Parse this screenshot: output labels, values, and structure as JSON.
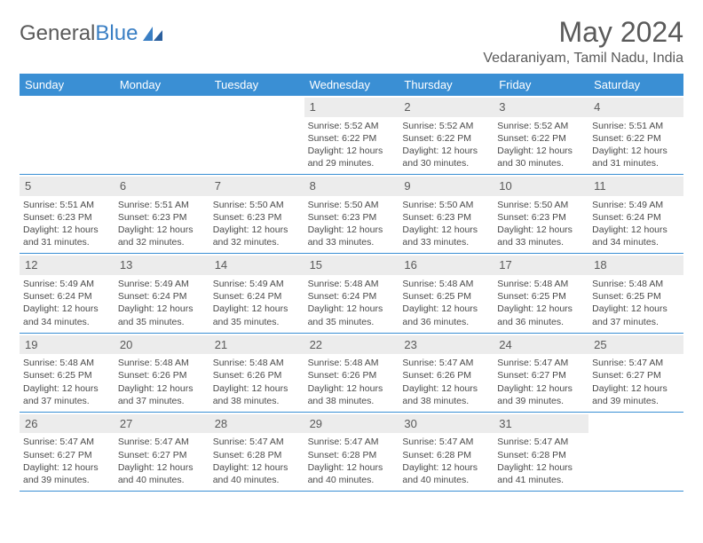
{
  "brand": {
    "part1": "General",
    "part2": "Blue"
  },
  "title": "May 2024",
  "location": "Vedaraniyam, Tamil Nadu, India",
  "colors": {
    "header_bg": "#3a8fd4",
    "header_text": "#ffffff",
    "daynum_bg": "#ececec",
    "border": "#3a8fd4",
    "body_text": "#4a4a4a",
    "title_text": "#5a5a5a",
    "brand_gray": "#5a5a5a",
    "brand_blue": "#3a7fc4"
  },
  "day_names": [
    "Sunday",
    "Monday",
    "Tuesday",
    "Wednesday",
    "Thursday",
    "Friday",
    "Saturday"
  ],
  "weeks": [
    [
      {
        "empty": true
      },
      {
        "empty": true
      },
      {
        "empty": true
      },
      {
        "day": "1",
        "sunrise": "5:52 AM",
        "sunset": "6:22 PM",
        "daylight": "12 hours and 29 minutes."
      },
      {
        "day": "2",
        "sunrise": "5:52 AM",
        "sunset": "6:22 PM",
        "daylight": "12 hours and 30 minutes."
      },
      {
        "day": "3",
        "sunrise": "5:52 AM",
        "sunset": "6:22 PM",
        "daylight": "12 hours and 30 minutes."
      },
      {
        "day": "4",
        "sunrise": "5:51 AM",
        "sunset": "6:22 PM",
        "daylight": "12 hours and 31 minutes."
      }
    ],
    [
      {
        "day": "5",
        "sunrise": "5:51 AM",
        "sunset": "6:23 PM",
        "daylight": "12 hours and 31 minutes."
      },
      {
        "day": "6",
        "sunrise": "5:51 AM",
        "sunset": "6:23 PM",
        "daylight": "12 hours and 32 minutes."
      },
      {
        "day": "7",
        "sunrise": "5:50 AM",
        "sunset": "6:23 PM",
        "daylight": "12 hours and 32 minutes."
      },
      {
        "day": "8",
        "sunrise": "5:50 AM",
        "sunset": "6:23 PM",
        "daylight": "12 hours and 33 minutes."
      },
      {
        "day": "9",
        "sunrise": "5:50 AM",
        "sunset": "6:23 PM",
        "daylight": "12 hours and 33 minutes."
      },
      {
        "day": "10",
        "sunrise": "5:50 AM",
        "sunset": "6:23 PM",
        "daylight": "12 hours and 33 minutes."
      },
      {
        "day": "11",
        "sunrise": "5:49 AM",
        "sunset": "6:24 PM",
        "daylight": "12 hours and 34 minutes."
      }
    ],
    [
      {
        "day": "12",
        "sunrise": "5:49 AM",
        "sunset": "6:24 PM",
        "daylight": "12 hours and 34 minutes."
      },
      {
        "day": "13",
        "sunrise": "5:49 AM",
        "sunset": "6:24 PM",
        "daylight": "12 hours and 35 minutes."
      },
      {
        "day": "14",
        "sunrise": "5:49 AM",
        "sunset": "6:24 PM",
        "daylight": "12 hours and 35 minutes."
      },
      {
        "day": "15",
        "sunrise": "5:48 AM",
        "sunset": "6:24 PM",
        "daylight": "12 hours and 35 minutes."
      },
      {
        "day": "16",
        "sunrise": "5:48 AM",
        "sunset": "6:25 PM",
        "daylight": "12 hours and 36 minutes."
      },
      {
        "day": "17",
        "sunrise": "5:48 AM",
        "sunset": "6:25 PM",
        "daylight": "12 hours and 36 minutes."
      },
      {
        "day": "18",
        "sunrise": "5:48 AM",
        "sunset": "6:25 PM",
        "daylight": "12 hours and 37 minutes."
      }
    ],
    [
      {
        "day": "19",
        "sunrise": "5:48 AM",
        "sunset": "6:25 PM",
        "daylight": "12 hours and 37 minutes."
      },
      {
        "day": "20",
        "sunrise": "5:48 AM",
        "sunset": "6:26 PM",
        "daylight": "12 hours and 37 minutes."
      },
      {
        "day": "21",
        "sunrise": "5:48 AM",
        "sunset": "6:26 PM",
        "daylight": "12 hours and 38 minutes."
      },
      {
        "day": "22",
        "sunrise": "5:48 AM",
        "sunset": "6:26 PM",
        "daylight": "12 hours and 38 minutes."
      },
      {
        "day": "23",
        "sunrise": "5:47 AM",
        "sunset": "6:26 PM",
        "daylight": "12 hours and 38 minutes."
      },
      {
        "day": "24",
        "sunrise": "5:47 AM",
        "sunset": "6:27 PM",
        "daylight": "12 hours and 39 minutes."
      },
      {
        "day": "25",
        "sunrise": "5:47 AM",
        "sunset": "6:27 PM",
        "daylight": "12 hours and 39 minutes."
      }
    ],
    [
      {
        "day": "26",
        "sunrise": "5:47 AM",
        "sunset": "6:27 PM",
        "daylight": "12 hours and 39 minutes."
      },
      {
        "day": "27",
        "sunrise": "5:47 AM",
        "sunset": "6:27 PM",
        "daylight": "12 hours and 40 minutes."
      },
      {
        "day": "28",
        "sunrise": "5:47 AM",
        "sunset": "6:28 PM",
        "daylight": "12 hours and 40 minutes."
      },
      {
        "day": "29",
        "sunrise": "5:47 AM",
        "sunset": "6:28 PM",
        "daylight": "12 hours and 40 minutes."
      },
      {
        "day": "30",
        "sunrise": "5:47 AM",
        "sunset": "6:28 PM",
        "daylight": "12 hours and 40 minutes."
      },
      {
        "day": "31",
        "sunrise": "5:47 AM",
        "sunset": "6:28 PM",
        "daylight": "12 hours and 41 minutes."
      },
      {
        "empty": true
      }
    ]
  ],
  "labels": {
    "sunrise_prefix": "Sunrise: ",
    "sunset_prefix": "Sunset: ",
    "daylight_prefix": "Daylight: "
  }
}
